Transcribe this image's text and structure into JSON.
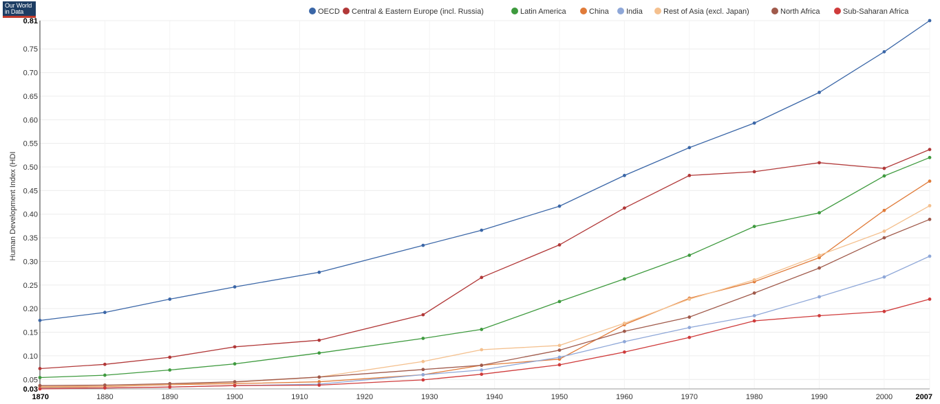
{
  "logo": {
    "line1": "Our World",
    "line2": "in Data"
  },
  "chart_data": {
    "type": "line",
    "title": "",
    "xlabel": "",
    "ylabel": "Human Development Index (HDI",
    "xlim": [
      1870,
      2007
    ],
    "ylim": [
      0.03,
      0.81
    ],
    "x_ticks": [
      1870,
      1880,
      1890,
      1900,
      1910,
      1920,
      1930,
      1940,
      1950,
      1960,
      1970,
      1980,
      1990,
      2000,
      2007
    ],
    "x_tick_labels": [
      "1870",
      "1880",
      "1890",
      "1900",
      "1910",
      "1920",
      "1930",
      "1940",
      "1950",
      "1960",
      "1970",
      "1980",
      "1990",
      "2000",
      "2007"
    ],
    "y_ticks": [
      0.03,
      0.05,
      0.1,
      0.15,
      0.2,
      0.25,
      0.3,
      0.35,
      0.4,
      0.45,
      0.5,
      0.55,
      0.6,
      0.65,
      0.7,
      0.75,
      0.81
    ],
    "y_tick_labels": [
      "0.03",
      "0.05",
      "0.10",
      "0.15",
      "0.20",
      "0.25",
      "0.30",
      "0.35",
      "0.40",
      "0.45",
      "0.50",
      "0.55",
      "0.60",
      "0.65",
      "0.70",
      "0.75",
      "0.81"
    ],
    "grid": true,
    "legend_position": "top",
    "series": [
      {
        "name": "OECD",
        "color": "#3a66a7",
        "x": [
          1870,
          1880,
          1890,
          1900,
          1913,
          1929,
          1938,
          1950,
          1960,
          1970,
          1980,
          1990,
          2000,
          2007
        ],
        "values": [
          0.175,
          0.192,
          0.22,
          0.246,
          0.277,
          0.334,
          0.366,
          0.417,
          0.482,
          0.541,
          0.593,
          0.658,
          0.744,
          0.81
        ]
      },
      {
        "name": "Central & Eastern Europe (incl. Russia)",
        "color": "#b13838",
        "x": [
          1870,
          1880,
          1890,
          1900,
          1913,
          1929,
          1938,
          1950,
          1960,
          1970,
          1980,
          1990,
          2000,
          2007
        ],
        "values": [
          0.073,
          0.082,
          0.097,
          0.119,
          0.133,
          0.187,
          0.266,
          0.335,
          0.413,
          0.482,
          0.49,
          0.509,
          0.497,
          0.537
        ]
      },
      {
        "name": "Latin America",
        "color": "#3e9a3e",
        "x": [
          1870,
          1880,
          1890,
          1900,
          1913,
          1929,
          1938,
          1950,
          1960,
          1970,
          1980,
          1990,
          2000,
          2007
        ],
        "values": [
          0.054,
          0.059,
          0.07,
          0.083,
          0.106,
          0.137,
          0.156,
          0.215,
          0.263,
          0.313,
          0.374,
          0.403,
          0.481,
          0.52
        ]
      },
      {
        "name": "China",
        "color": "#e07b39",
        "x": [
          1870,
          1880,
          1890,
          1900,
          1913,
          1929,
          1938,
          1950,
          1960,
          1970,
          1980,
          1990,
          2000,
          2007
        ],
        "values": [
          0.033,
          0.035,
          0.039,
          0.041,
          0.045,
          0.06,
          0.08,
          0.093,
          0.166,
          0.222,
          0.257,
          0.308,
          0.408,
          0.47
        ]
      },
      {
        "name": "India",
        "color": "#8ea7d8",
        "x": [
          1870,
          1880,
          1890,
          1900,
          1913,
          1929,
          1938,
          1950,
          1960,
          1970,
          1980,
          1990,
          2000,
          2007
        ],
        "values": [
          0.031,
          0.032,
          0.034,
          0.037,
          0.04,
          0.06,
          0.07,
          0.097,
          0.13,
          0.16,
          0.185,
          0.225,
          0.267,
          0.311
        ]
      },
      {
        "name": "Rest of Asia (excl. Japan)",
        "color": "#f4c08e",
        "x": [
          1870,
          1880,
          1890,
          1900,
          1913,
          1929,
          1938,
          1950,
          1960,
          1970,
          1980,
          1990,
          2000,
          2007
        ],
        "values": [
          0.035,
          0.036,
          0.04,
          0.044,
          0.055,
          0.088,
          0.113,
          0.122,
          0.169,
          0.22,
          0.261,
          0.313,
          0.364,
          0.418
        ]
      },
      {
        "name": "North Africa",
        "color": "#a05a4b",
        "x": [
          1870,
          1880,
          1890,
          1900,
          1913,
          1929,
          1938,
          1950,
          1960,
          1970,
          1980,
          1990,
          2000,
          2007
        ],
        "values": [
          0.037,
          0.038,
          0.041,
          0.045,
          0.055,
          0.071,
          0.08,
          0.112,
          0.152,
          0.182,
          0.233,
          0.286,
          0.35,
          0.389
        ]
      },
      {
        "name": "Sub-Saharan Africa",
        "color": "#cf3b3b",
        "x": [
          1870,
          1880,
          1890,
          1900,
          1913,
          1929,
          1938,
          1950,
          1960,
          1970,
          1980,
          1990,
          2000,
          2007
        ],
        "values": [
          0.03,
          0.032,
          0.034,
          0.037,
          0.038,
          0.049,
          0.061,
          0.081,
          0.108,
          0.139,
          0.174,
          0.185,
          0.194,
          0.22
        ]
      }
    ]
  }
}
